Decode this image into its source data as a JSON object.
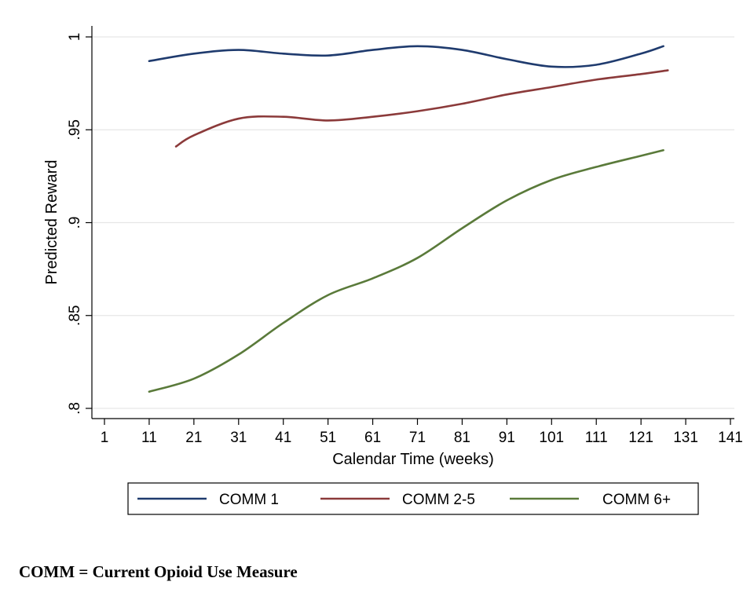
{
  "chart_data": {
    "type": "line",
    "xlabel": "Calendar Time (weeks)",
    "ylabel": "Predicted Reward",
    "xlim": [
      1,
      141
    ],
    "ylim": [
      0.8,
      1.0
    ],
    "x_ticks": [
      1,
      11,
      21,
      31,
      41,
      51,
      61,
      71,
      81,
      91,
      101,
      111,
      121,
      131,
      141
    ],
    "x_tick_labels": [
      "1",
      "11",
      "21",
      "31",
      "41",
      "51",
      "61",
      "71",
      "81",
      "91",
      "101",
      "111",
      "121",
      "131",
      "141"
    ],
    "y_ticks": [
      0.8,
      0.85,
      0.9,
      0.95,
      1.0
    ],
    "y_tick_labels": [
      ".8",
      ".85",
      ".9",
      ".95",
      "1"
    ],
    "grid": true,
    "legend_position": "bottom",
    "series": [
      {
        "name": "COMM 1",
        "color": "#1f3b6e",
        "x": [
          11,
          21,
          31,
          41,
          51,
          61,
          71,
          81,
          91,
          101,
          111,
          121,
          126
        ],
        "y": [
          0.987,
          0.991,
          0.993,
          0.991,
          0.99,
          0.993,
          0.995,
          0.993,
          0.988,
          0.984,
          0.985,
          0.991,
          0.995
        ]
      },
      {
        "name": "COMM 2-5",
        "color": "#8b3a3a",
        "x": [
          17,
          21,
          31,
          41,
          51,
          61,
          71,
          81,
          91,
          101,
          111,
          121,
          127
        ],
        "y": [
          0.941,
          0.947,
          0.956,
          0.957,
          0.955,
          0.957,
          0.96,
          0.964,
          0.969,
          0.973,
          0.977,
          0.98,
          0.982
        ]
      },
      {
        "name": "COMM 6+",
        "color": "#5a7a3a",
        "x": [
          11,
          21,
          31,
          41,
          51,
          61,
          71,
          81,
          91,
          101,
          111,
          121,
          126
        ],
        "y": [
          0.809,
          0.816,
          0.829,
          0.846,
          0.861,
          0.87,
          0.881,
          0.897,
          0.912,
          0.923,
          0.93,
          0.936,
          0.939
        ]
      }
    ]
  },
  "footnote": "COMM = Current Opioid Use Measure"
}
